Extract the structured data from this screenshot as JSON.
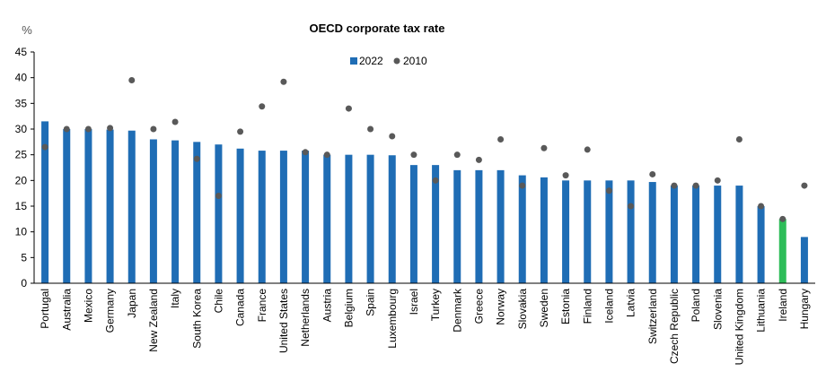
{
  "chart_data": {
    "type": "bar",
    "title": "OECD corporate tax rate",
    "unit_label": "%",
    "ylim": [
      0,
      45
    ],
    "yticks": [
      0,
      5,
      10,
      15,
      20,
      25,
      30,
      35,
      40,
      45
    ],
    "legend": {
      "position": "top-center",
      "entries": [
        "2022",
        "2010"
      ]
    },
    "categories": [
      "Portugal",
      "Australia",
      "Mexico",
      "Germany",
      "Japan",
      "New Zealand",
      "Italy",
      "South Korea",
      "Chile",
      "Canada",
      "France",
      "United States",
      "Netherlands",
      "Austria",
      "Belgium",
      "Spain",
      "Luxembourg",
      "Israel",
      "Turkey",
      "Denmark",
      "Greece",
      "Norway",
      "Slovakia",
      "Sweden",
      "Estonia",
      "Finland",
      "Iceland",
      "Latvia",
      "Switzerland",
      "Czech Republic",
      "Poland",
      "Slovenia",
      "United Kingdom",
      "Lithuania",
      "Ireland",
      "Hungary"
    ],
    "series": [
      {
        "name": "2022",
        "kind": "bar",
        "color": "#1f6db5",
        "values": [
          31.5,
          30,
          30,
          29.9,
          29.7,
          28,
          27.8,
          27.5,
          27,
          26.2,
          25.8,
          25.8,
          25.8,
          25,
          25,
          25,
          24.9,
          23,
          23,
          22,
          22,
          22,
          21,
          20.6,
          20,
          20,
          20,
          20,
          19.7,
          19,
          19,
          19,
          19,
          15,
          12.5,
          9
        ]
      },
      {
        "name": "2010",
        "kind": "scatter",
        "color": "#595959",
        "values": [
          26.5,
          30,
          30,
          30.2,
          39.5,
          30,
          31.4,
          24.2,
          17,
          29.5,
          34.4,
          39.2,
          25.5,
          25,
          34,
          30,
          28.6,
          25,
          20,
          25,
          24,
          28,
          19,
          26.3,
          21,
          26,
          18,
          15,
          21.2,
          19,
          19,
          20,
          28,
          15,
          12.5,
          19
        ]
      }
    ],
    "highlight": {
      "category": "Ireland",
      "color": "#2ebd59"
    }
  }
}
